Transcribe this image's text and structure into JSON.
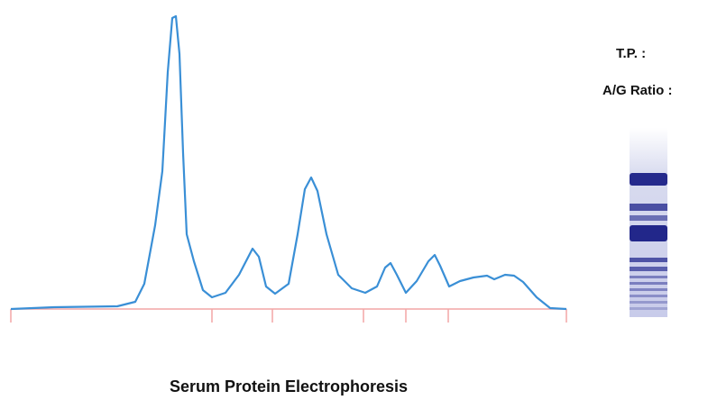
{
  "chart_data": {
    "type": "line",
    "title": "Serum Protein Electrophoresis",
    "side_labels": [
      "T.P. :",
      "A/G Ratio :"
    ],
    "x": [
      0,
      48,
      118,
      138,
      148,
      160,
      168,
      174,
      179,
      183,
      187,
      191,
      195,
      203,
      213,
      223,
      238,
      253,
      268,
      275,
      283,
      293,
      308,
      318,
      326,
      333,
      340,
      350,
      363,
      378,
      393,
      406,
      415,
      421,
      428,
      438,
      450,
      463,
      470,
      476,
      486,
      498,
      513,
      528,
      536,
      548,
      558,
      568,
      583,
      598,
      616
    ],
    "values": [
      0,
      2,
      3,
      8,
      28,
      93,
      153,
      263,
      323,
      325,
      283,
      173,
      83,
      53,
      21,
      13,
      18,
      38,
      67,
      58,
      25,
      17,
      28,
      83,
      133,
      146,
      131,
      83,
      38,
      23,
      18,
      25,
      46,
      51,
      38,
      18,
      31,
      53,
      60,
      48,
      25,
      31,
      35,
      37,
      33,
      38,
      37,
      30,
      13,
      1,
      0
    ],
    "color": "#3a8fd6",
    "xlim": [
      0,
      616
    ],
    "ylim": [
      0,
      330
    ],
    "xticks": [
      0,
      223,
      290,
      391,
      438,
      485,
      616
    ],
    "baseline_color": "#f2a6a6"
  }
}
